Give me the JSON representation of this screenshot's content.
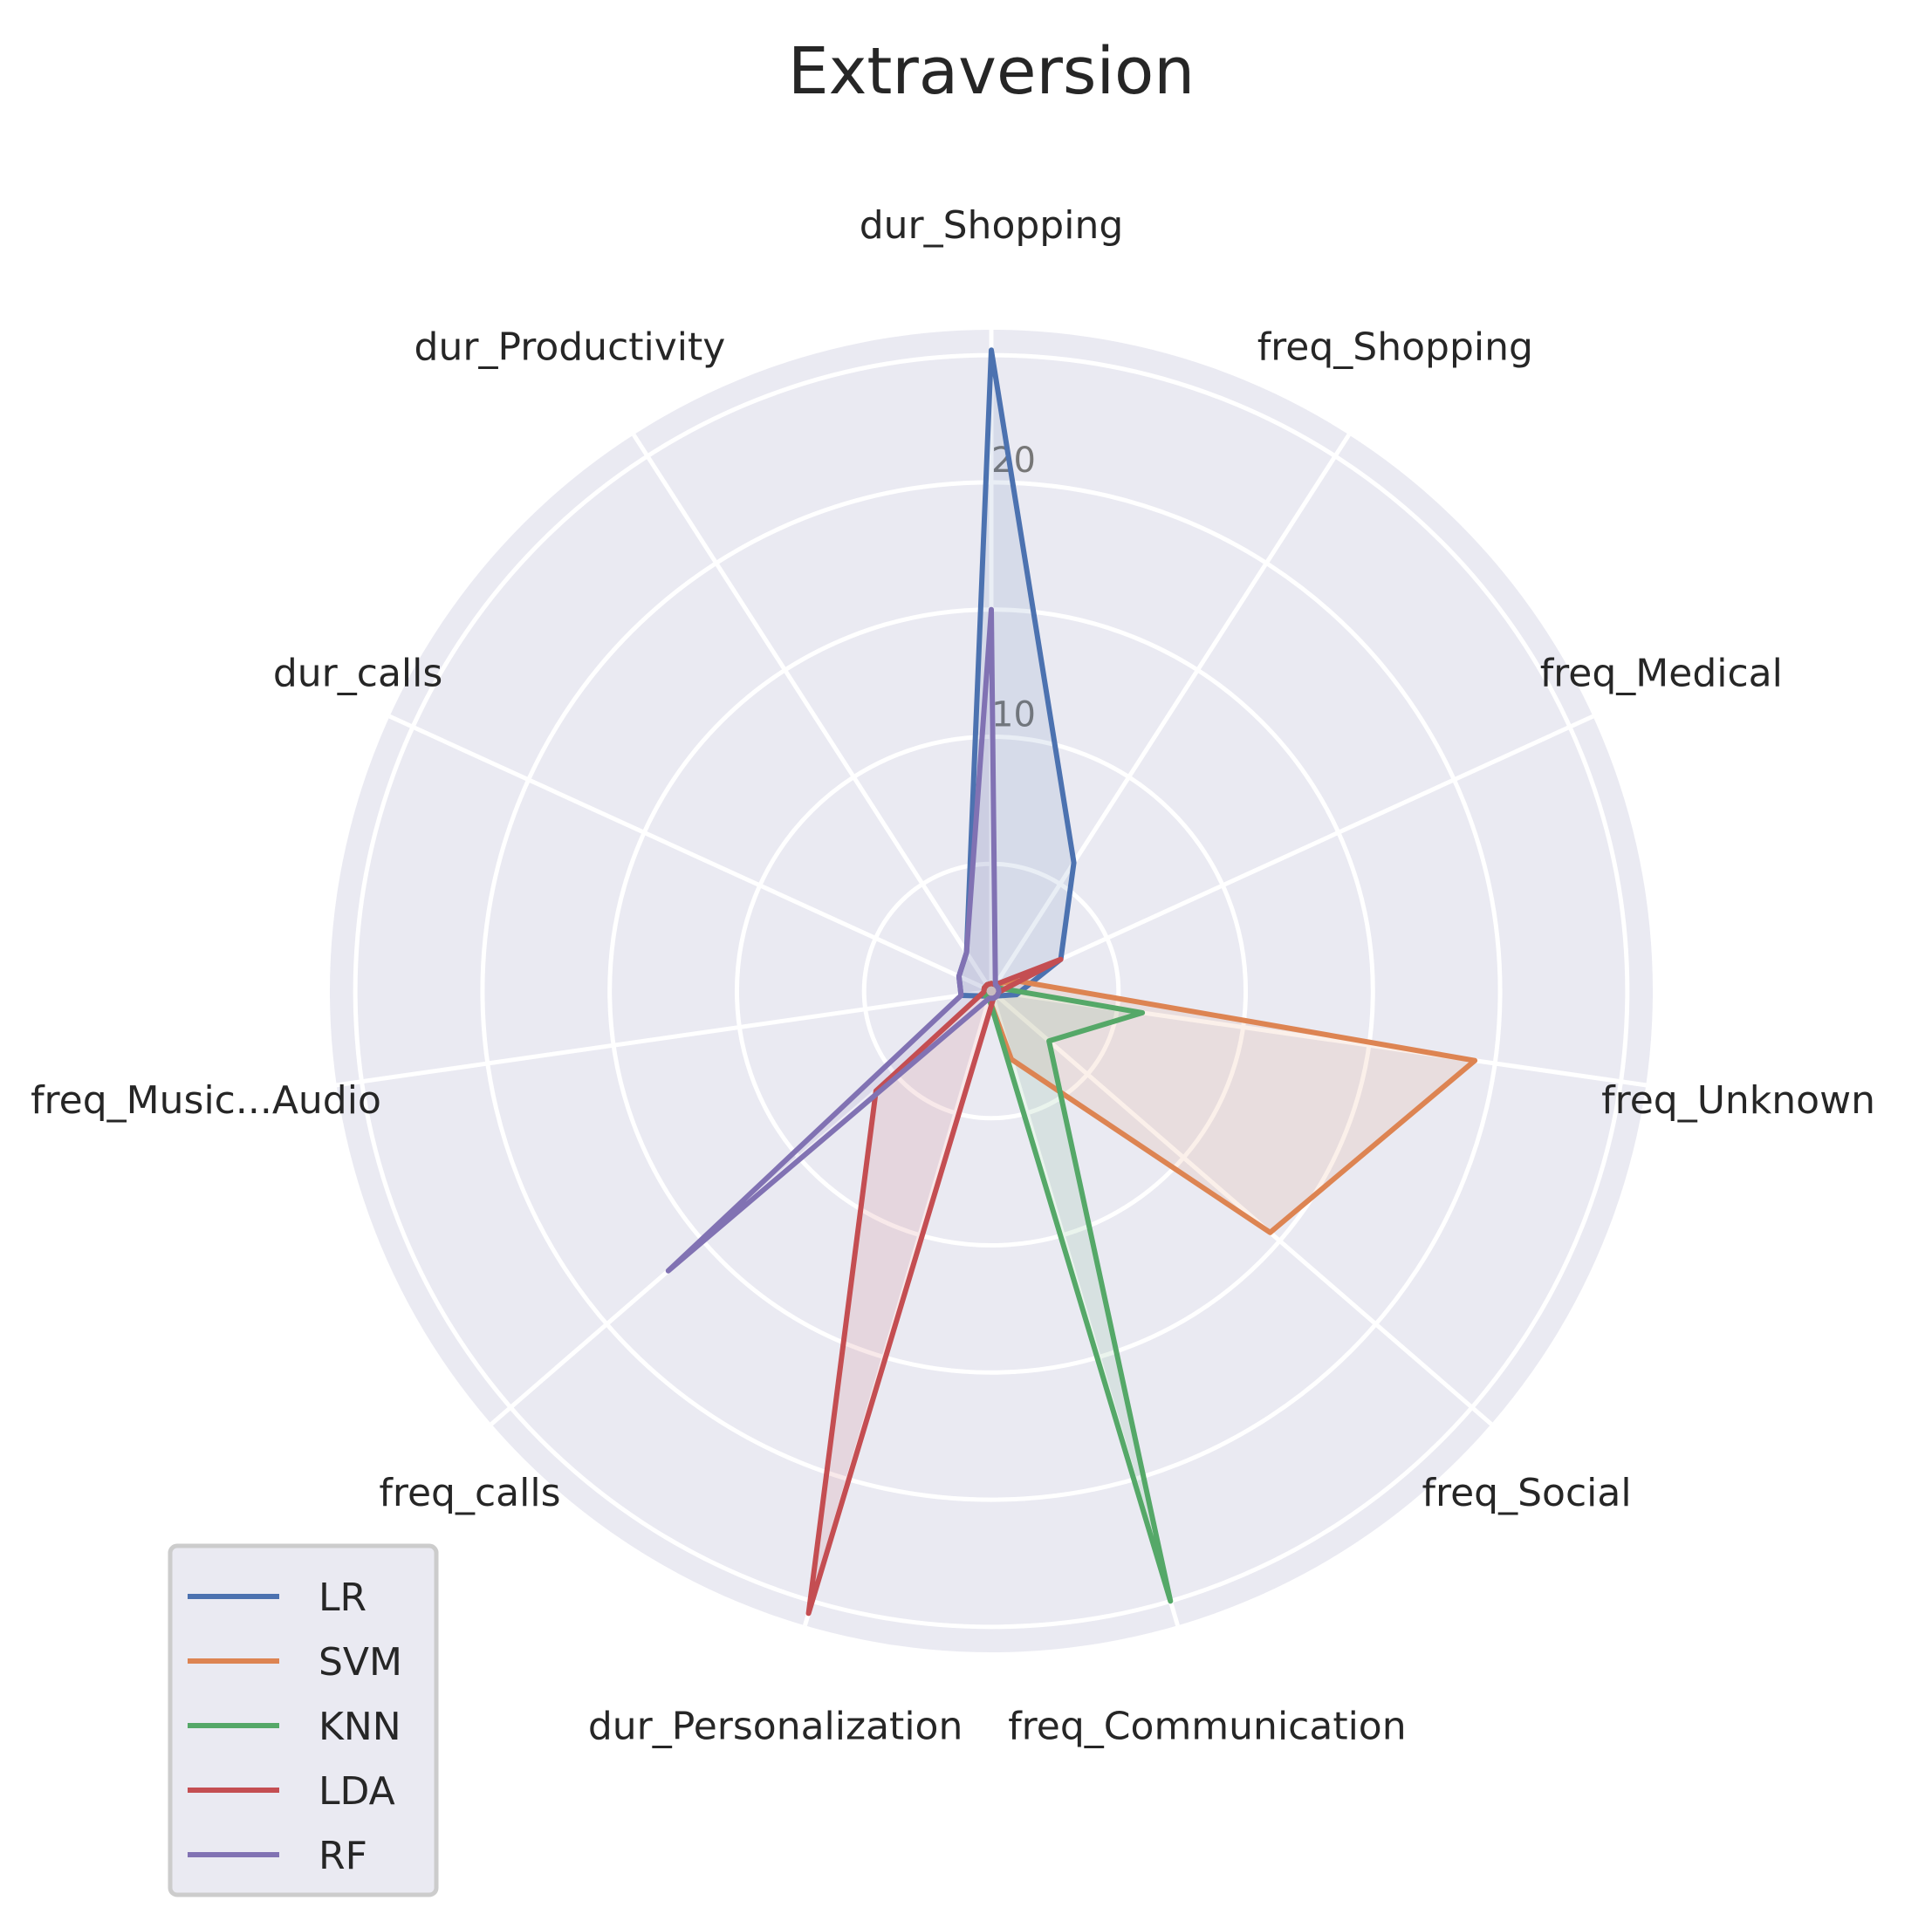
{
  "chart_data": {
    "type": "radar",
    "title": "Extraversion",
    "axes": [
      "dur_Shopping",
      "freq_Shopping",
      "freq_Medical",
      "freq_Unknown",
      "freq_Social",
      "freq_Communication",
      "dur_Personalization",
      "freq_calls",
      "freq_Music...Audio",
      "dur_calls",
      "dur_Productivity"
    ],
    "radial_ticks": [
      10,
      20
    ],
    "rmax": 26,
    "grid": true,
    "legend_position": "lower-left",
    "series": [
      {
        "name": "LR",
        "color": "#4c72b0",
        "values": [
          25.2,
          6.0,
          3.0,
          1.0,
          0.3,
          0.3,
          0.3,
          0.3,
          1.2,
          1.4,
          1.8
        ]
      },
      {
        "name": "SVM",
        "color": "#dd8452",
        "values": [
          0.3,
          0.3,
          1.0,
          19.2,
          14.5,
          2.8,
          0.3,
          0.3,
          0.3,
          0.3,
          0.3
        ]
      },
      {
        "name": "KNN",
        "color": "#55a868",
        "values": [
          0.3,
          0.3,
          0.3,
          6.0,
          3.0,
          25.0,
          0.3,
          0.3,
          0.3,
          0.3,
          0.3
        ]
      },
      {
        "name": "LDA",
        "color": "#c44e52",
        "values": [
          0.3,
          0.3,
          3.0,
          0.3,
          0.3,
          0.3,
          25.5,
          6.0,
          0.3,
          0.3,
          0.3
        ]
      },
      {
        "name": "RF",
        "color": "#8172b3",
        "values": [
          15.0,
          0.3,
          0.3,
          0.3,
          0.3,
          0.3,
          0.3,
          16.8,
          1.2,
          1.4,
          1.8
        ]
      }
    ]
  }
}
